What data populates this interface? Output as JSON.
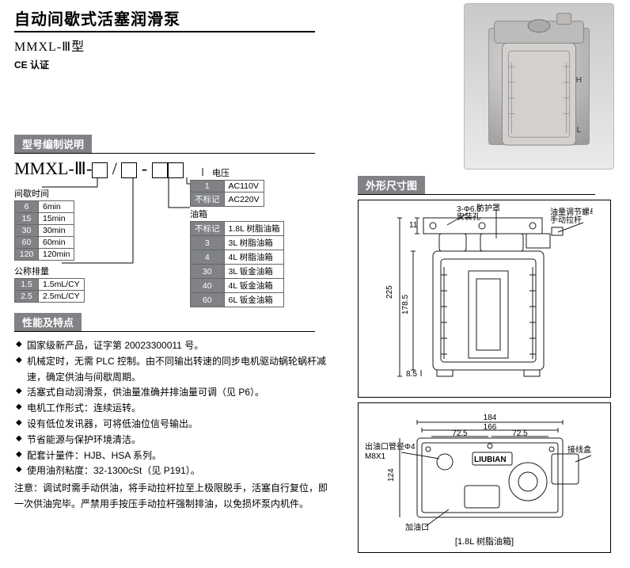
{
  "title": "自动间歇式活塞润滑泵",
  "subtitle_a": "MMXL-",
  "subtitle_b": "Ⅲ",
  "subtitle_c": "型",
  "ce": "CE 认证",
  "product_img": {
    "H": "H",
    "L": "L"
  },
  "sections": {
    "model": "型号编制说明",
    "feat": "性能及特点",
    "dims": "外形尺寸图"
  },
  "model_code": {
    "prefix": "MMXL-Ⅲ-",
    "groups": {
      "interval": {
        "label": "间歇时间",
        "rows": [
          {
            "code": "6",
            "desc": "6min"
          },
          {
            "code": "15",
            "desc": "15min"
          },
          {
            "code": "30",
            "desc": "30min"
          },
          {
            "code": "60",
            "desc": "60min"
          },
          {
            "code": "120",
            "desc": "120min"
          }
        ]
      },
      "discharge": {
        "label": "公称排量",
        "rows": [
          {
            "code": "1.5",
            "desc": "1.5mL/CY"
          },
          {
            "code": "2.5",
            "desc": "2.5mL/CY"
          }
        ]
      },
      "voltage": {
        "label": "电压",
        "rows": [
          {
            "code": "1",
            "desc": "AC110V"
          },
          {
            "code": "不标记",
            "desc": "AC220V"
          }
        ]
      },
      "tank": {
        "label": "油箱",
        "rows": [
          {
            "code": "不标记",
            "desc": "1.8L 树脂油箱"
          },
          {
            "code": "3",
            "desc": "3L 树脂油箱"
          },
          {
            "code": "4",
            "desc": "4L 树脂油箱"
          },
          {
            "code": "30",
            "desc": "3L 钣金油箱"
          },
          {
            "code": "40",
            "desc": "4L 钣金油箱"
          },
          {
            "code": "60",
            "desc": "6L 钣金油箱"
          }
        ]
      }
    }
  },
  "features": [
    "国家级新产品，证字第 20023300011 号。",
    "机械定时，无需 PLC 控制。由不同输出转速的同步电机驱动蜗轮蜗杆减速，确定供油与间歇周期。",
    "活塞式自动润滑泵，供油量准确并排油量可调（见 P6）。",
    "电机工作形式：连续运转。",
    "设有低位发讯器，可将低油位信号输出。",
    "节省能源与保护环境清洁。",
    "配套计量件：HJB、HSA 系列。",
    "使用油剂粘度：32-1300cSt（见 P191）。"
  ],
  "note_label": "注意：",
  "note_text": "调试时需手动供油，将手动拉杆拉至上极限脱手，活塞自行复位，即一次供油完毕。严禁用手按压手动拉杆强制排油，以免损坏泵内机件。",
  "drawing_front": {
    "labels": {
      "cover": "防护罩",
      "hole": "3-Φ6.5",
      "hole2": "安装孔",
      "adjust1": "油量调节螺母",
      "adjust2": "手动拉杆"
    },
    "dims": {
      "d11": "11",
      "d225": "225",
      "d1785": "178.5",
      "d85": "8.5"
    }
  },
  "drawing_bottom": {
    "labels": {
      "outlet1": "出油口管径Φ4",
      "outlet2": "M8X1",
      "brand": "LIUBIAN",
      "jbox": "接线盒",
      "fill": "加油口"
    },
    "dims": {
      "d184": "184",
      "d166": "166",
      "d725a": "72.5",
      "d725b": "72.5",
      "d124": "124"
    },
    "caption": "[1.8L 树脂油箱]"
  },
  "colors": {
    "gray": "#808285",
    "line": "#000000",
    "drawstroke": "#1a1a1a"
  }
}
